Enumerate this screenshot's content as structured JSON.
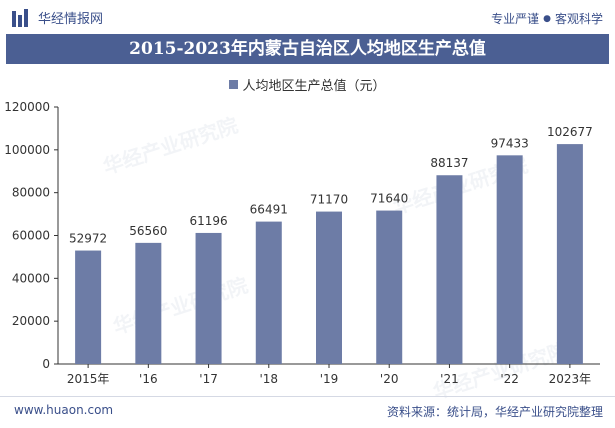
{
  "header": {
    "logo_text": "华经情报网",
    "slogan_left": "专业严谨",
    "slogan_right": "客观科学",
    "logo_icon": "bar-logo-icon"
  },
  "footer": {
    "url": "www.huaon.com",
    "source": "资料来源：统计局，华经产业研究院整理"
  },
  "watermark": {
    "text": "华经产业研究院",
    "url": "www.huaon.com"
  },
  "colors": {
    "bar": "#6d7ca6",
    "title_bg": "#4b5f93",
    "brand": "#3a4f8a"
  },
  "chart_data": {
    "type": "bar",
    "title": "2015-2023年内蒙古自治区人均地区生产总值",
    "legend": "人均地区生产总值（元）",
    "categories": [
      "2015年",
      "'16",
      "'17",
      "'18",
      "'19",
      "'20",
      "'21",
      "'22",
      "2023年"
    ],
    "series": [
      {
        "name": "人均地区生产总值（元）",
        "values": [
          52972,
          56560,
          61196,
          66491,
          71170,
          71640,
          88137,
          97433,
          102677
        ]
      }
    ],
    "ylim": [
      0,
      120000
    ],
    "yticks": [
      0,
      20000,
      40000,
      60000,
      80000,
      100000,
      120000
    ],
    "grid": false,
    "legend_position": "top-center"
  }
}
